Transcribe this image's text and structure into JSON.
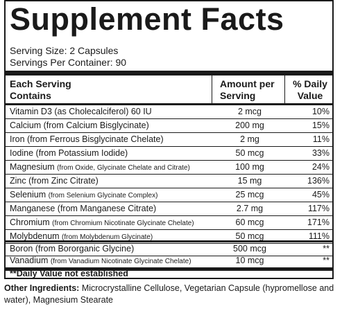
{
  "title": "Supplement Facts",
  "serving_size": "Serving Size: 2 Capsules",
  "servings_per_container": "Servings Per Container: 90",
  "headers": {
    "col1_line1": "Each Serving",
    "col1_line2": "Contains",
    "col2_line1": "Amount per",
    "col2_line2": "Serving",
    "col3_line1": "% Daily",
    "col3_line2": "Value"
  },
  "rows": [
    {
      "name": "Vitamin D3 (as Cholecalciferol) 60 IU",
      "sub": "",
      "amount": "2 mcg",
      "dv": "10%"
    },
    {
      "name": "Calcium (from Calcium Bisglycinate)",
      "sub": "",
      "amount": "200 mg",
      "dv": "15%"
    },
    {
      "name": "Iron (from Ferrous Bisglycinate Chelate)",
      "sub": "",
      "amount": "2 mg",
      "dv": "11%"
    },
    {
      "name": "Iodine (from Potassium Iodide)",
      "sub": "",
      "amount": "50 mcg",
      "dv": "33%"
    },
    {
      "name": "Magnesium ",
      "sub": "(from Oxide, Glycinate Chelate and Citrate)",
      "amount": "100 mg",
      "dv": "24%"
    },
    {
      "name": "Zinc (from Zinc Citrate)",
      "sub": "",
      "amount": "15 mg",
      "dv": "136%"
    },
    {
      "name": "Selenium ",
      "sub": "(from Selenium Glycinate Complex)",
      "amount": "25 mcg",
      "dv": "45%"
    },
    {
      "name": "Manganese (from Manganese Citrate)",
      "sub": "",
      "amount": "2.7 mg",
      "dv": "117%"
    },
    {
      "name": "Chromium ",
      "sub": "(from Chromium Nicotinate Glycinate Chelate)",
      "amount": "60 mcg",
      "dv": "171%"
    },
    {
      "name": "Molybdenum ",
      "sub": "(from Molybdenum Glycinate)",
      "amount": "50 mcg",
      "dv": "111%"
    },
    {
      "name": "Boron (from Bororganic Glycine)",
      "sub": "",
      "amount": "500 mcg",
      "dv": "**"
    },
    {
      "name": "Vanadium ",
      "sub": "(from Vanadium Nicotinate Glycinate Chelate)",
      "amount": "10 mcg",
      "dv": "**"
    }
  ],
  "footnote": "**Daily Value not established",
  "other_ingredients_label": "Other Ingredients:",
  "other_ingredients_text": " Microcrystalline Cellulose, Vegetarian Capsule (hypromellose and water), Magnesium Stearate"
}
